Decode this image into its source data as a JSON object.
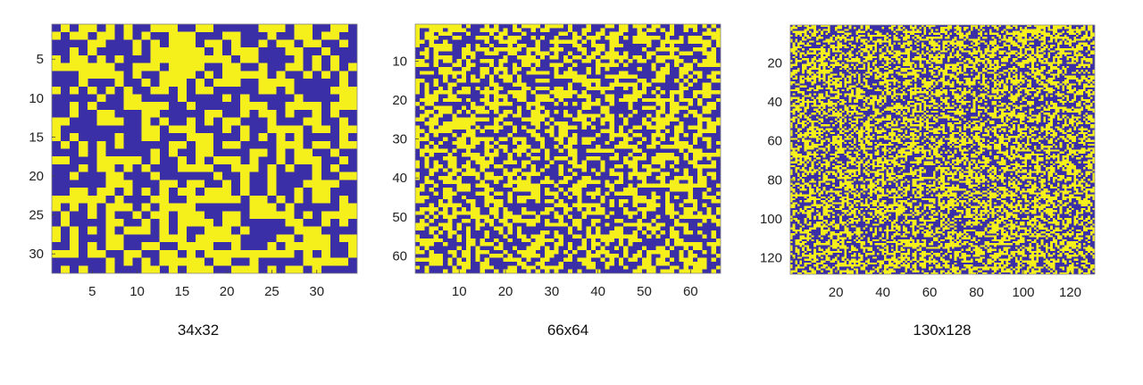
{
  "colors": {
    "low": "#3b2fa8",
    "high": "#f5f01c"
  },
  "chart_data": [
    {
      "type": "heatmap",
      "title": "34x32",
      "cols": 34,
      "rows": 32,
      "xlim": [
        0.5,
        34.5
      ],
      "ylim": [
        0.5,
        32.5
      ],
      "y_reversed": true,
      "xticks": [
        5,
        10,
        15,
        20,
        25,
        30
      ],
      "yticks": [
        5,
        10,
        15,
        20,
        25,
        30
      ],
      "values": "binary random pattern (0 = blue, 1 = yellow)",
      "seed": 17
    },
    {
      "type": "heatmap",
      "title": "66x64",
      "cols": 66,
      "rows": 64,
      "xlim": [
        0.5,
        66.5
      ],
      "ylim": [
        0.5,
        64.5
      ],
      "y_reversed": true,
      "xticks": [
        10,
        20,
        30,
        40,
        50,
        60
      ],
      "yticks": [
        10,
        20,
        30,
        40,
        50,
        60
      ],
      "values": "binary random pattern (0 = blue, 1 = yellow)",
      "seed": 29
    },
    {
      "type": "heatmap",
      "title": "130x128",
      "cols": 130,
      "rows": 128,
      "xlim": [
        0.5,
        130.5
      ],
      "ylim": [
        0.5,
        128.5
      ],
      "y_reversed": true,
      "xticks": [
        20,
        40,
        60,
        80,
        100,
        120
      ],
      "yticks": [
        20,
        40,
        60,
        80,
        100,
        120
      ],
      "values": "binary random pattern (0 = blue, 1 = yellow)",
      "seed": 43
    }
  ]
}
